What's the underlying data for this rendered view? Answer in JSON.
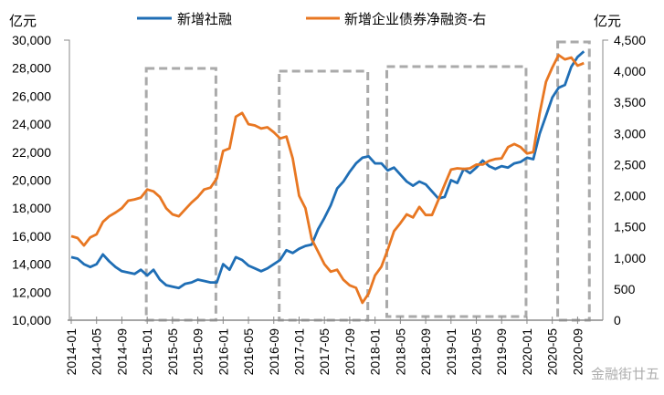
{
  "chart_data": {
    "type": "line",
    "title": "",
    "left_axis": {
      "unit_label": "亿元",
      "ylim": [
        10000,
        30000
      ],
      "ticks": [
        "10,000",
        "12,000",
        "14,000",
        "16,000",
        "18,000",
        "20,000",
        "22,000",
        "24,000",
        "26,000",
        "28,000",
        "30,000"
      ]
    },
    "right_axis": {
      "unit_label": "亿元",
      "ylim": [
        0,
        4500
      ],
      "ticks": [
        "0",
        "500",
        "1,000",
        "1,500",
        "2,000",
        "2,500",
        "3,000",
        "3,500",
        "4,000",
        "4,500"
      ]
    },
    "x_tick_labels": [
      "2014-01",
      "2014-05",
      "2014-09",
      "2015-01",
      "2015-05",
      "2015-09",
      "2016-01",
      "2016-05",
      "2016-09",
      "2017-01",
      "2017-05",
      "2017-09",
      "2018-01",
      "2018-05",
      "2018-09",
      "2019-01",
      "2019-05",
      "2019-09",
      "2020-01",
      "2020-05",
      "2020-09"
    ],
    "x_start": "2014-01",
    "grid": false,
    "legend_position": "top",
    "series": [
      {
        "name": "新增社融",
        "axis": "left",
        "color": "#1F6EB5",
        "values": [
          14500,
          14400,
          14000,
          13800,
          14000,
          14700,
          14200,
          13800,
          13500,
          13400,
          13300,
          13600,
          13200,
          13600,
          12900,
          12500,
          12400,
          12300,
          12600,
          12700,
          12900,
          12800,
          12700,
          12700,
          14000,
          13600,
          14500,
          14300,
          13900,
          13700,
          13500,
          13700,
          14000,
          14300,
          15000,
          14800,
          15100,
          15300,
          15400,
          16500,
          17300,
          18200,
          19400,
          19900,
          20600,
          21200,
          21600,
          21700,
          21200,
          21200,
          20700,
          20900,
          20400,
          19900,
          19600,
          19900,
          19700,
          19200,
          18700,
          18800,
          20000,
          19800,
          20800,
          20500,
          20900,
          21400,
          21000,
          20800,
          21000,
          20900,
          21200,
          21300,
          21600,
          21500,
          23300,
          24600,
          25900,
          26600,
          26800,
          28100,
          28800,
          29200
        ]
      },
      {
        "name": "新增企业债券净融资-右",
        "axis": "right",
        "color": "#E87722",
        "values": [
          1350,
          1320,
          1200,
          1330,
          1380,
          1580,
          1670,
          1730,
          1800,
          1920,
          1940,
          1970,
          2100,
          2070,
          1980,
          1800,
          1700,
          1670,
          1780,
          1890,
          1980,
          2100,
          2130,
          2280,
          2720,
          2760,
          3270,
          3330,
          3150,
          3130,
          3080,
          3100,
          3020,
          2920,
          2950,
          2600,
          2000,
          1800,
          1300,
          1100,
          900,
          780,
          810,
          650,
          560,
          520,
          280,
          430,
          720,
          860,
          1130,
          1430,
          1560,
          1700,
          1650,
          1820,
          1690,
          1690,
          1930,
          2180,
          2420,
          2440,
          2430,
          2440,
          2500,
          2500,
          2560,
          2590,
          2600,
          2780,
          2830,
          2780,
          2680,
          2700,
          3320,
          3830,
          4060,
          4260,
          4190,
          4220,
          4090,
          4130
        ]
      }
    ],
    "highlight_periods": [
      {
        "start": "2015-01",
        "end": "2015-12"
      },
      {
        "start": "2016-10",
        "end": "2017-12"
      },
      {
        "start": "2018-03",
        "end": "2020-01"
      },
      {
        "start": "2020-06",
        "end": "2020-11"
      }
    ]
  },
  "watermark": "金融街廿五"
}
